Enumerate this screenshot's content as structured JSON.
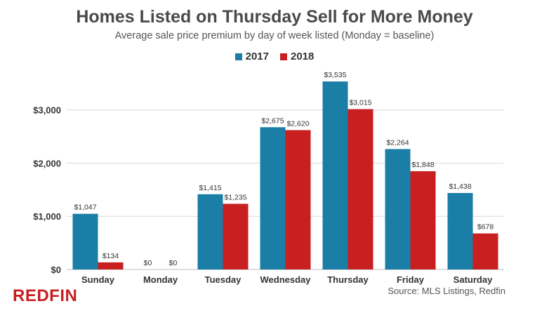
{
  "colors": {
    "series_2017": "#1a7ea6",
    "series_2018": "#c82021",
    "grid": "#d9d9d9",
    "text": "#333333"
  },
  "brand": "REDFIN",
  "source": "Source: MLS Listings, Redfin",
  "chart_data": {
    "type": "bar",
    "title": "Homes Listed on Thursday Sell for More Money",
    "subtitle": "Average sale price premium by day of week listed (Monday = baseline)",
    "xlabel": "",
    "ylabel": "",
    "categories": [
      "Sunday",
      "Monday",
      "Tuesday",
      "Wednesday",
      "Thursday",
      "Friday",
      "Saturday"
    ],
    "series": [
      {
        "name": "2017",
        "values": [
          1047,
          0,
          1415,
          2675,
          3535,
          2264,
          1438
        ],
        "labels": [
          "$1,047",
          "$0",
          "$1,415",
          "$2,675",
          "$3,535",
          "$2,264",
          "$1,438"
        ]
      },
      {
        "name": "2018",
        "values": [
          134,
          0,
          1235,
          2620,
          3015,
          1848,
          678
        ],
        "labels": [
          "$134",
          "$0",
          "$1,235",
          "$2,620",
          "$3,015",
          "$1,848",
          "$678"
        ]
      }
    ],
    "ylim": [
      0,
      3800
    ],
    "yticks": [
      0,
      1000,
      2000,
      3000
    ],
    "ytick_labels": [
      "$0",
      "$1,000",
      "$2,000",
      "$3,000"
    ],
    "grid": true,
    "legend": "top-center"
  }
}
